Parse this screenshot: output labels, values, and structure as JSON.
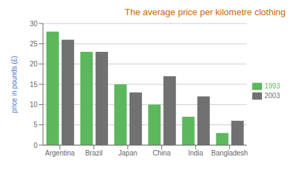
{
  "chart_data": {
    "type": "bar",
    "title": "The average price per kilometre clothing",
    "ylabel": "price in pounds (£)",
    "categories": [
      "Argentina",
      "Brazil",
      "Japan",
      "China",
      "India",
      "Bangladesh"
    ],
    "series": [
      {
        "name": "1993",
        "color": "#5cb85c",
        "values": [
          28,
          23,
          15,
          10,
          7,
          3
        ]
      },
      {
        "name": "2003",
        "color": "#717171",
        "values": [
          26,
          23,
          13,
          17,
          12,
          6
        ]
      }
    ],
    "ylim": [
      0,
      30
    ],
    "yticks": [
      0,
      5,
      10,
      15,
      20,
      25,
      30
    ],
    "grid": true,
    "legend": "right"
  }
}
